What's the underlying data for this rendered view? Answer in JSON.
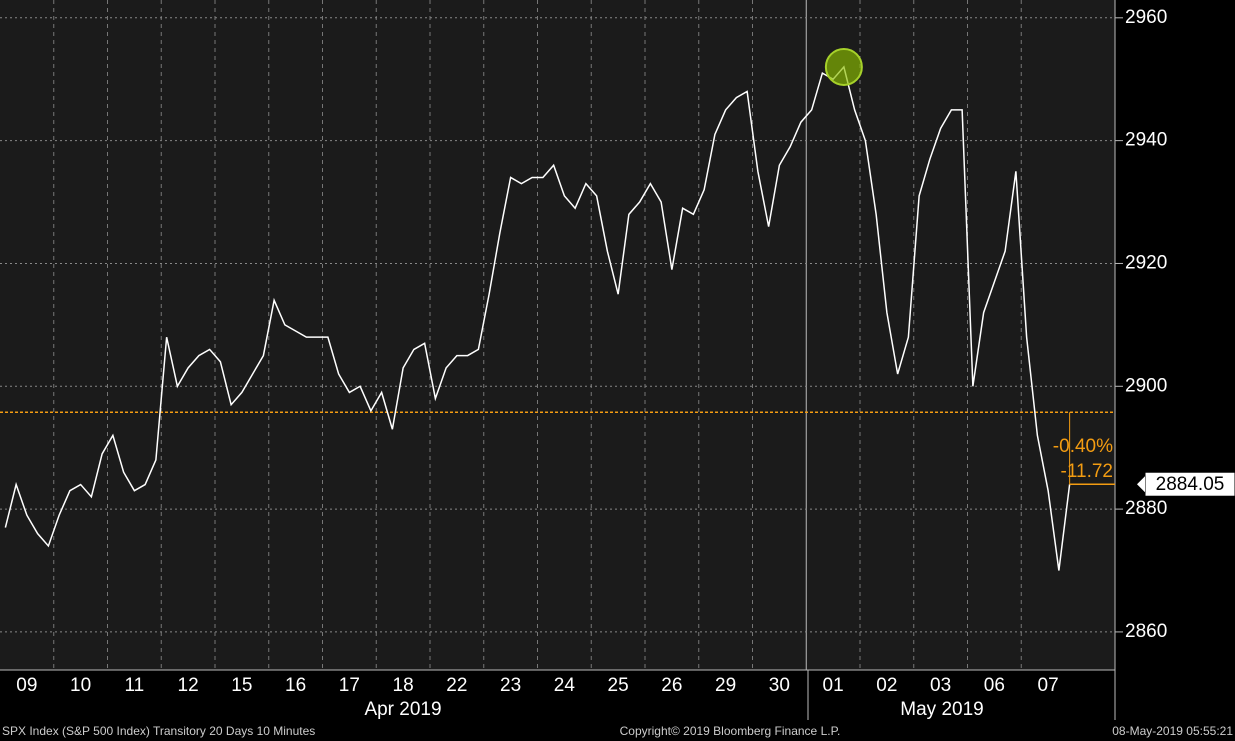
{
  "chart_data": {
    "type": "line",
    "categories": [
      "09",
      null,
      null,
      null,
      null,
      "10",
      null,
      null,
      null,
      null,
      "11",
      null,
      null,
      null,
      null,
      "12",
      null,
      null,
      null,
      null,
      "15",
      null,
      null,
      null,
      null,
      "16",
      null,
      null,
      null,
      null,
      "17",
      null,
      null,
      null,
      null,
      "18",
      null,
      null,
      null,
      null,
      "22",
      null,
      null,
      null,
      null,
      "23",
      null,
      null,
      null,
      null,
      "24",
      null,
      null,
      null,
      null,
      "25",
      null,
      null,
      null,
      null,
      "26",
      null,
      null,
      null,
      null,
      "29",
      null,
      null,
      null,
      null,
      "30",
      null,
      null,
      null,
      null,
      "01",
      null,
      null,
      null,
      null,
      "02",
      null,
      null,
      null,
      null,
      "03",
      null,
      null,
      null,
      null,
      "06",
      null,
      null,
      null,
      null,
      "07",
      null,
      null,
      null,
      null
    ],
    "months": [
      "Apr 2019",
      "May 2019"
    ],
    "series": [
      {
        "name": "SPX Index",
        "color": "#ffffff",
        "values": [
          2877,
          2884,
          2879,
          2876,
          2874,
          2879,
          2883,
          2884,
          2882,
          2889,
          2892,
          2886,
          2883,
          2884,
          2888,
          2908,
          2900,
          2903,
          2905,
          2906,
          2904,
          2897,
          2899,
          2902,
          2905,
          2914,
          2910,
          2909,
          2908,
          2908,
          2908,
          2902,
          2899,
          2900,
          2896,
          2899,
          2893,
          2903,
          2906,
          2907,
          2898,
          2903,
          2905,
          2905,
          2906,
          2915,
          2925,
          2934,
          2933,
          2934,
          2934,
          2936,
          2931,
          2929,
          2933,
          2931,
          2922,
          2915,
          2928,
          2930,
          2933,
          2930,
          2919,
          2929,
          2928,
          2932,
          2941,
          2945,
          2947,
          2948,
          2935,
          2926,
          2936,
          2939,
          2943,
          2945,
          2951,
          2950,
          2952,
          2945,
          2940,
          2928,
          2912,
          2902,
          2908,
          2931,
          2937,
          2942,
          2945,
          2945,
          2900,
          2912,
          2917,
          2922,
          2935,
          2908,
          2892,
          2883,
          2870,
          2884.05
        ]
      }
    ],
    "reference_line": {
      "value": 2895.77,
      "color": "#f39c12"
    },
    "last_price": 2884.05,
    "annotations": [
      "-0.40%",
      "-11.72"
    ],
    "ylim": [
      2853.8,
      2962.9
    ],
    "yticks": [
      2860,
      2880,
      2900,
      2920,
      2940,
      2960
    ],
    "grid": true,
    "footer": {
      "left": "SPX Index (S&P 500 Index) Transitory 20 Days 10 Minutes",
      "center": "Copyright© 2019 Bloomberg Finance L.P.",
      "right": "08-May-2019 05:55:21"
    }
  }
}
